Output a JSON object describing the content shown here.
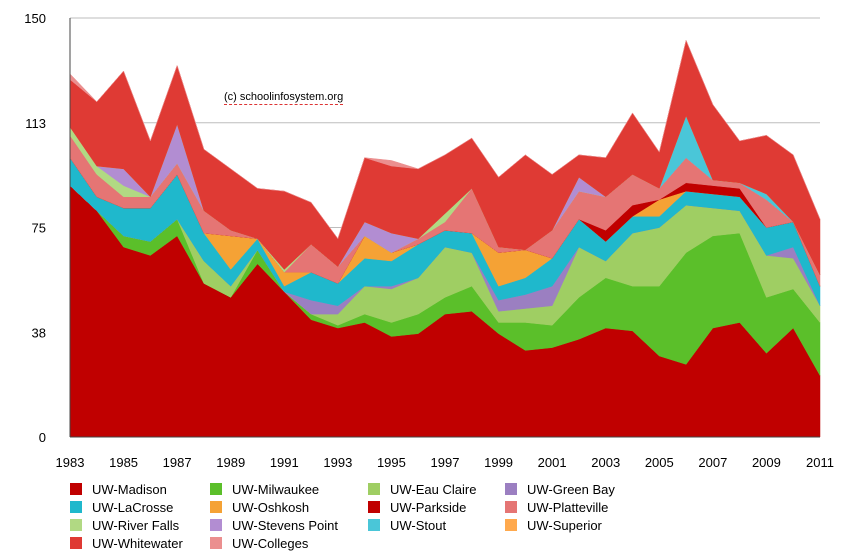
{
  "credit": "(c) schoolinfosystem.org",
  "chart_data": {
    "type": "area",
    "stacked": true,
    "title": "",
    "xlabel": "",
    "ylabel": "",
    "ylim": [
      0,
      150
    ],
    "yticks": [
      "0",
      "38",
      "75",
      "113",
      "150"
    ],
    "ytick_values": [
      0,
      37.5,
      75,
      112.5,
      150
    ],
    "xticks": [
      "1983",
      "1985",
      "1987",
      "1989",
      "1991",
      "1993",
      "1995",
      "1997",
      "1999",
      "2001",
      "2003",
      "2005",
      "2007",
      "2009",
      "2011"
    ],
    "grid": "horizontal",
    "legend_position": "bottom",
    "x": [
      1983,
      1984,
      1985,
      1986,
      1987,
      1988,
      1989,
      1990,
      1991,
      1992,
      1993,
      1994,
      1995,
      1996,
      1997,
      1998,
      1999,
      2000,
      2001,
      2002,
      2003,
      2004,
      2005,
      2006,
      2007,
      2008,
      2009,
      2010,
      2011
    ],
    "series": [
      {
        "name": "UW-Madison",
        "color": "#c00000",
        "values": [
          90,
          81,
          68,
          65,
          72,
          55,
          50,
          62,
          52,
          42,
          39,
          41,
          36,
          37,
          44,
          45,
          37,
          31,
          32,
          35,
          39,
          38,
          29,
          26,
          39,
          41,
          30,
          39,
          22
        ]
      },
      {
        "name": "UW-Milwaukee",
        "color": "#5bbf2a",
        "values": [
          0,
          0,
          4,
          5,
          6,
          0,
          0,
          5,
          0,
          2,
          1,
          3,
          5,
          7,
          6,
          9,
          4,
          10,
          8,
          15,
          18,
          16,
          25,
          40,
          33,
          32,
          20,
          14,
          19
        ]
      },
      {
        "name": "UW-Eau Claire",
        "color": "#9fce63",
        "values": [
          0,
          0,
          0,
          0,
          0,
          8,
          4,
          0,
          0,
          0,
          4,
          10,
          12,
          13,
          18,
          12,
          4,
          5,
          7,
          18,
          6,
          19,
          21,
          17,
          10,
          8,
          15,
          11,
          6
        ]
      },
      {
        "name": "UW-Green Bay",
        "color": "#9b7fc1",
        "values": [
          0,
          0,
          0,
          0,
          0,
          0,
          0,
          0,
          0,
          5,
          3,
          0,
          1,
          0,
          0,
          0,
          4,
          5,
          7,
          0,
          0,
          0,
          0,
          0,
          0,
          0,
          0,
          4,
          0
        ]
      },
      {
        "name": "UW-LaCrosse",
        "color": "#1fb8cc",
        "values": [
          10,
          5,
          10,
          12,
          16,
          10,
          6,
          4,
          2,
          10,
          8,
          10,
          9,
          12,
          6,
          7,
          5,
          6,
          10,
          10,
          7,
          6,
          4,
          5,
          5,
          5,
          10,
          9,
          7
        ]
      },
      {
        "name": "UW-Oshkosh",
        "color": "#f5a235",
        "values": [
          0,
          0,
          0,
          0,
          0,
          0,
          12,
          0,
          5,
          0,
          0,
          8,
          3,
          0,
          0,
          0,
          12,
          10,
          0,
          0,
          0,
          0,
          6,
          0,
          0,
          0,
          0,
          0,
          0
        ]
      },
      {
        "name": "UW-Parkside",
        "color": "#c00000",
        "values": [
          0,
          0,
          0,
          0,
          0,
          0,
          0,
          0,
          0,
          0,
          0,
          0,
          0,
          0,
          0,
          0,
          0,
          0,
          0,
          0,
          4,
          4,
          0,
          3,
          3,
          3,
          0,
          0,
          0
        ]
      },
      {
        "name": "UW-Platteville",
        "color": "#e57574",
        "values": [
          8,
          8,
          4,
          4,
          4,
          8,
          2,
          0,
          0,
          10,
          6,
          0,
          0,
          2,
          3,
          16,
          2,
          0,
          10,
          10,
          12,
          11,
          4,
          9,
          2,
          2,
          10,
          0,
          4
        ]
      },
      {
        "name": "UW-River Falls",
        "color": "#b1d983",
        "values": [
          3,
          3,
          4,
          0,
          0,
          0,
          0,
          0,
          1,
          0,
          0,
          0,
          0,
          0,
          3,
          0,
          0,
          0,
          0,
          0,
          0,
          0,
          0,
          0,
          0,
          0,
          0,
          0,
          0
        ]
      },
      {
        "name": "UW-Stevens Point",
        "color": "#b28dd2",
        "values": [
          0,
          0,
          6,
          0,
          14,
          0,
          0,
          0,
          0,
          0,
          0,
          5,
          7,
          0,
          0,
          0,
          0,
          0,
          0,
          5,
          0,
          0,
          0,
          0,
          0,
          0,
          0,
          0,
          0
        ]
      },
      {
        "name": "UW-Stout",
        "color": "#4ac6d8",
        "values": [
          0,
          0,
          0,
          0,
          0,
          0,
          0,
          0,
          0,
          0,
          0,
          0,
          0,
          0,
          0,
          0,
          0,
          0,
          0,
          0,
          0,
          0,
          0,
          15,
          0,
          0,
          2,
          0,
          0
        ]
      },
      {
        "name": "UW-Superior",
        "color": "#ffa94d",
        "values": [
          0,
          0,
          0,
          0,
          0,
          0,
          0,
          0,
          0,
          0,
          0,
          0,
          0,
          0,
          0,
          0,
          0,
          0,
          0,
          0,
          0,
          0,
          0,
          0,
          0,
          0,
          0,
          0,
          0
        ]
      },
      {
        "name": "UW-Whitewater",
        "color": "#df3a34",
        "values": [
          17,
          23,
          35,
          20,
          21,
          22,
          22,
          18,
          28,
          15,
          10,
          23,
          24,
          25,
          21,
          18,
          25,
          34,
          20,
          8,
          14,
          22,
          13,
          27,
          27,
          15,
          21,
          24,
          20
        ]
      },
      {
        "name": "UW-Colleges",
        "color": "#eb8f8f",
        "values": [
          2,
          0,
          0,
          0,
          0,
          0,
          0,
          0,
          0,
          0,
          0,
          0,
          2,
          0,
          0,
          0,
          0,
          0,
          0,
          0,
          0,
          0,
          0,
          0,
          0,
          0,
          0,
          0,
          0
        ]
      }
    ]
  },
  "legend_order": [
    "UW-Madison",
    "UW-Milwaukee",
    "UW-Eau Claire",
    "UW-Green Bay",
    "UW-LaCrosse",
    "UW-Oshkosh",
    "UW-Parkside",
    "UW-Platteville",
    "UW-River Falls",
    "UW-Stevens Point",
    "UW-Stout",
    "UW-Superior",
    "UW-Whitewater",
    "UW-Colleges"
  ]
}
